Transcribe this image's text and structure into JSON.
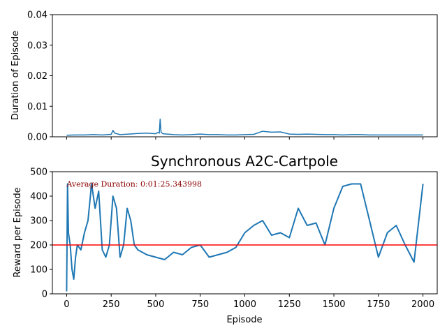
{
  "chart_data": [
    {
      "type": "line",
      "title": "",
      "xlabel": "",
      "ylabel": "Duration of Episode",
      "xlim": [
        -80,
        2080
      ],
      "ylim": [
        0,
        0.04
      ],
      "xticks": [
        0,
        250,
        500,
        750,
        1000,
        1250,
        1500,
        1750,
        2000
      ],
      "xtick_labels_visible": false,
      "yticks": [
        0.0,
        0.01,
        0.02,
        0.03,
        0.04
      ],
      "ytick_labels": [
        "0.00",
        "0.01",
        "0.02",
        "0.03",
        "0.04"
      ],
      "grid": false,
      "colors": {
        "series": "#1f77b4"
      },
      "series": [
        {
          "x": [
            0,
            50,
            100,
            150,
            200,
            250,
            260,
            270,
            300,
            350,
            400,
            450,
            500,
            510,
            520,
            525,
            530,
            540,
            600,
            650,
            700,
            750,
            800,
            850,
            900,
            950,
            1000,
            1050,
            1100,
            1150,
            1200,
            1250,
            1300,
            1350,
            1400,
            1450,
            1500,
            1550,
            1600,
            1650,
            1700,
            1750,
            1800,
            1850,
            1900,
            1950,
            2000
          ],
          "y": [
            0.0005,
            0.0006,
            0.0006,
            0.0007,
            0.0006,
            0.0008,
            0.0021,
            0.0012,
            0.0007,
            0.0009,
            0.0011,
            0.0012,
            0.001,
            0.0014,
            0.0012,
            0.0058,
            0.0015,
            0.001,
            0.0007,
            0.0006,
            0.0007,
            0.0009,
            0.0007,
            0.0007,
            0.0006,
            0.0006,
            0.0007,
            0.0008,
            0.0018,
            0.0015,
            0.0016,
            0.0009,
            0.0008,
            0.0009,
            0.0008,
            0.0007,
            0.0007,
            0.0006,
            0.0007,
            0.0007,
            0.0006,
            0.0006,
            0.0006,
            0.0006,
            0.0006,
            0.0006,
            0.0006
          ]
        }
      ]
    },
    {
      "type": "line",
      "title": "Synchronous A2C-Cartpole",
      "xlabel": "Episode",
      "ylabel": "Reward per Episode",
      "xlim": [
        -80,
        2080
      ],
      "ylim": [
        0,
        500
      ],
      "xticks": [
        0,
        250,
        500,
        750,
        1000,
        1250,
        1500,
        1750,
        2000
      ],
      "xtick_labels": [
        "0",
        "250",
        "500",
        "750",
        "1000",
        "1250",
        "1500",
        "1750",
        "2000"
      ],
      "yticks": [
        0,
        100,
        200,
        300,
        400,
        500
      ],
      "ytick_labels": [
        "0",
        "100",
        "200",
        "300",
        "400",
        "500"
      ],
      "grid": false,
      "colors": {
        "series": "#1f77b4",
        "hline": "#ff0000",
        "annotation": "#8b0000"
      },
      "hline": {
        "y": 200
      },
      "annotation": {
        "text": "Average Duration: 0:01:25.343998",
        "x": 0,
        "y": 450
      },
      "series": [
        {
          "x": [
            0,
            5,
            10,
            20,
            30,
            40,
            50,
            60,
            80,
            100,
            120,
            140,
            160,
            180,
            200,
            220,
            240,
            260,
            280,
            300,
            320,
            340,
            360,
            380,
            400,
            450,
            500,
            550,
            600,
            650,
            700,
            750,
            800,
            850,
            900,
            950,
            1000,
            1050,
            1100,
            1150,
            1200,
            1250,
            1300,
            1350,
            1400,
            1450,
            1500,
            1550,
            1600,
            1650,
            1700,
            1750,
            1800,
            1850,
            1900,
            1950,
            2000
          ],
          "y": [
            10,
            450,
            250,
            200,
            100,
            60,
            150,
            200,
            180,
            250,
            300,
            450,
            350,
            420,
            180,
            150,
            200,
            400,
            350,
            150,
            200,
            350,
            300,
            200,
            180,
            160,
            150,
            140,
            170,
            160,
            190,
            200,
            150,
            160,
            170,
            190,
            250,
            280,
            300,
            240,
            250,
            230,
            350,
            280,
            290,
            200,
            350,
            440,
            450,
            450,
            300,
            150,
            250,
            280,
            200,
            130,
            450
          ]
        }
      ]
    }
  ]
}
